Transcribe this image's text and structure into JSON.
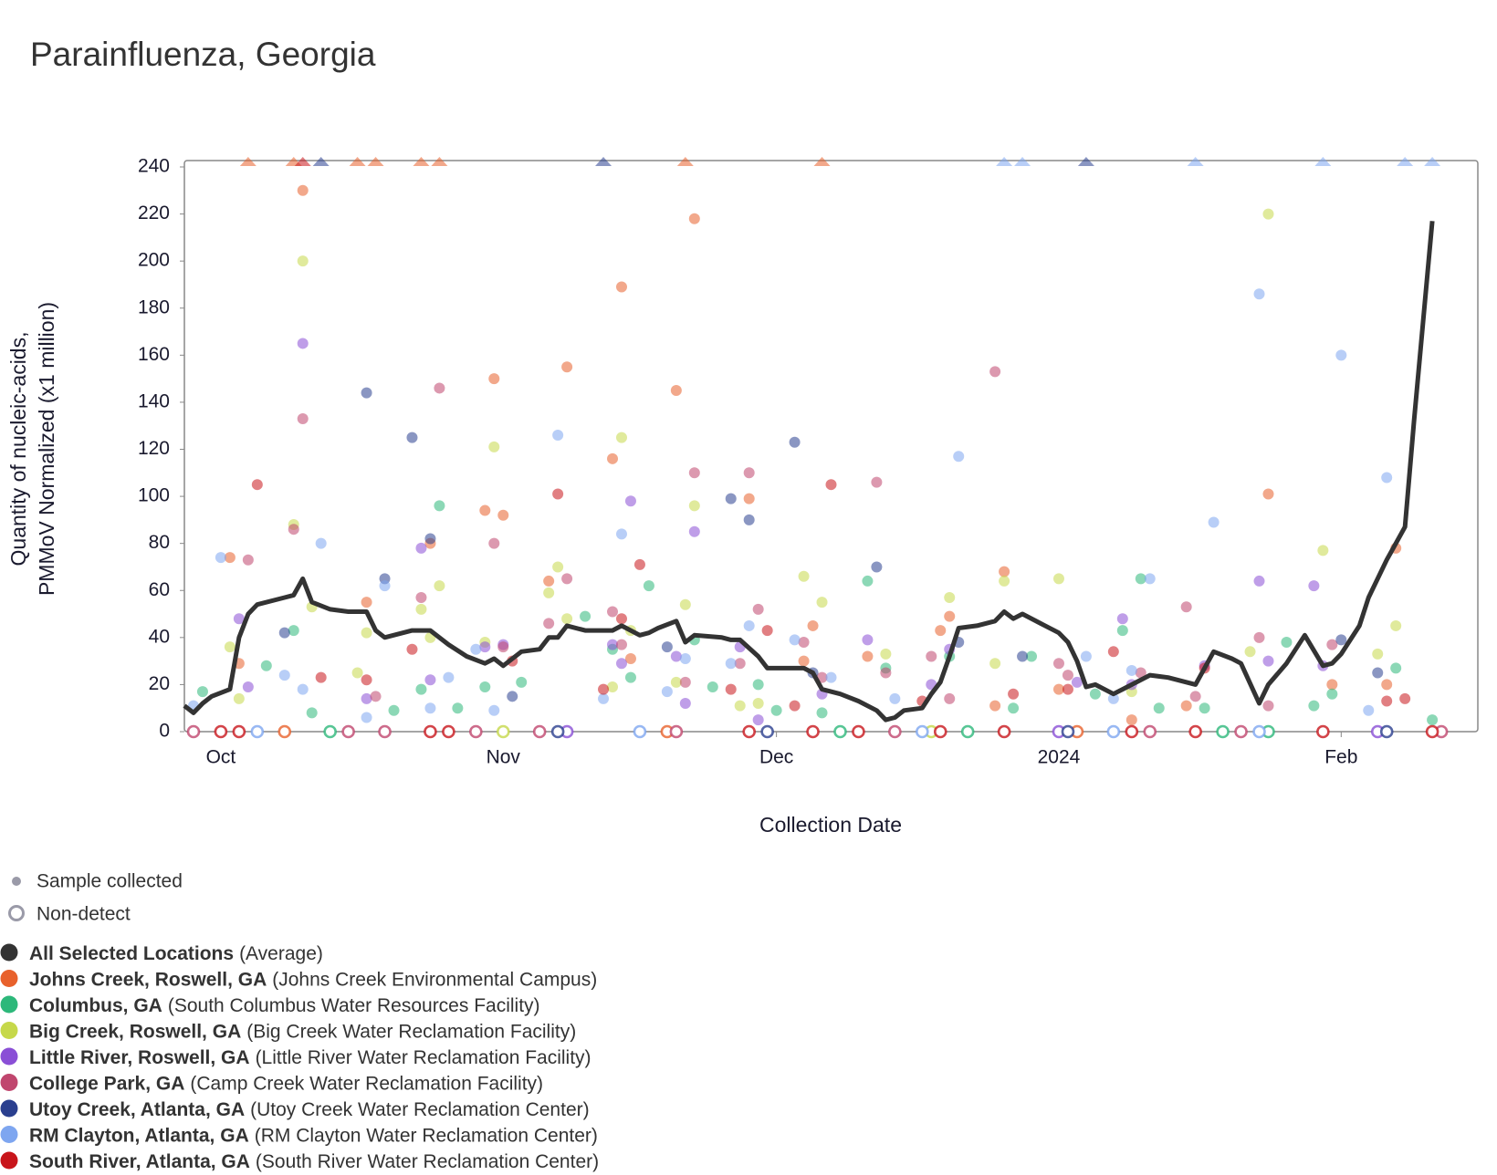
{
  "chart_data": {
    "type": "scatter",
    "title": "Parainfluenza, Georgia",
    "x_label": "Collection Date",
    "y_label": [
      "Quantity of nucleic-acids,",
      "PMMoV Normalized (x1 million)"
    ],
    "xlim": [
      "2023-09-27",
      "2024-02-16"
    ],
    "xticks": [
      {
        "value": "2023-10-01",
        "label": "Oct"
      },
      {
        "value": "2023-11-01",
        "label": "Nov"
      },
      {
        "value": "2023-12-01",
        "label": "Dec"
      },
      {
        "value": "2024-01-01",
        "label": "2024"
      },
      {
        "value": "2024-02-01",
        "label": "Feb"
      }
    ],
    "ylim": [
      0,
      240
    ],
    "yticks": [
      0,
      20,
      40,
      60,
      80,
      100,
      120,
      140,
      160,
      180,
      200,
      220,
      240
    ],
    "marker_legend": [
      "Sample collected",
      "Non-detect"
    ],
    "series": [
      {
        "name": "All Selected Locations",
        "detail": "(Average)",
        "color": "#333333",
        "style": "line",
        "x": [
          "2023-09-27",
          "2023-09-28",
          "2023-09-29",
          "2023-09-30",
          "2023-10-02",
          "2023-10-03",
          "2023-10-04",
          "2023-10-05",
          "2023-10-08",
          "2023-10-09",
          "2023-10-10",
          "2023-10-11",
          "2023-10-13",
          "2023-10-15",
          "2023-10-17",
          "2023-10-18",
          "2023-10-19",
          "2023-10-22",
          "2023-10-24",
          "2023-10-26",
          "2023-10-28",
          "2023-10-30",
          "2023-10-31",
          "2023-11-01",
          "2023-11-03",
          "2023-11-05",
          "2023-11-06",
          "2023-11-07",
          "2023-11-08",
          "2023-11-10",
          "2023-11-13",
          "2023-11-14",
          "2023-11-16",
          "2023-11-17",
          "2023-11-18",
          "2023-11-20",
          "2023-11-21",
          "2023-11-22",
          "2023-11-25",
          "2023-11-26",
          "2023-11-27",
          "2023-11-29",
          "2023-11-30",
          "2023-12-01",
          "2023-12-04",
          "2023-12-05",
          "2023-12-06",
          "2023-12-08",
          "2023-12-10",
          "2023-12-12",
          "2023-12-13",
          "2023-12-14",
          "2023-12-15",
          "2023-12-17",
          "2023-12-18",
          "2023-12-19",
          "2023-12-20",
          "2023-12-21",
          "2023-12-23",
          "2023-12-25",
          "2023-12-26",
          "2023-12-27",
          "2023-12-28",
          "2023-12-30",
          "2024-01-01",
          "2024-01-02",
          "2024-01-03",
          "2024-01-04",
          "2024-01-05",
          "2024-01-07",
          "2024-01-08",
          "2024-01-11",
          "2024-01-13",
          "2024-01-16",
          "2024-01-18",
          "2024-01-20",
          "2024-01-21",
          "2024-01-23",
          "2024-01-24",
          "2024-01-26",
          "2024-01-28",
          "2024-01-30",
          "2024-01-31",
          "2024-02-01",
          "2024-02-03",
          "2024-02-04",
          "2024-02-06",
          "2024-02-08",
          "2024-02-09",
          "2024-02-11"
        ],
        "values": [
          11,
          8,
          12,
          15,
          18,
          40,
          50,
          54,
          57,
          58,
          65,
          55,
          52,
          51,
          51,
          43,
          40,
          43,
          43,
          37,
          32,
          29,
          31,
          28,
          34,
          35,
          40,
          40,
          45,
          43,
          43,
          45,
          41,
          42,
          44,
          47,
          38,
          41,
          40,
          39,
          39,
          32,
          27,
          27,
          27,
          25,
          18,
          16,
          13,
          9,
          5,
          6,
          9,
          10,
          16,
          21,
          32,
          44,
          45,
          47,
          51,
          48,
          50,
          46,
          42,
          38,
          30,
          19,
          20,
          16,
          18,
          24,
          23,
          20,
          34,
          31,
          29,
          12,
          20,
          29,
          41,
          28,
          29,
          33,
          45,
          57,
          73,
          87,
          132,
          217
        ]
      },
      {
        "name": "Johns Creek, Roswell, GA",
        "detail": "(Johns Creek Environmental Campus)",
        "color": "#e8612c",
        "x": [
          "2023-10-02",
          "2023-10-03",
          "2023-10-10",
          "2023-10-17",
          "2023-10-24",
          "2023-10-30",
          "2023-10-31",
          "2023-11-01",
          "2023-11-06",
          "2023-11-08",
          "2023-11-13",
          "2023-11-14",
          "2023-11-15",
          "2023-11-20",
          "2023-11-22",
          "2023-11-28",
          "2023-12-04",
          "2023-12-05",
          "2023-12-11",
          "2023-12-19",
          "2023-12-20",
          "2023-12-25",
          "2023-12-26",
          "2024-01-01",
          "2024-01-09",
          "2024-01-15",
          "2024-01-24",
          "2024-01-31",
          "2024-02-06",
          "2024-02-07"
        ],
        "values": [
          74,
          29,
          230,
          55,
          80,
          94,
          150,
          92,
          64,
          155,
          116,
          189,
          31,
          145,
          218,
          99,
          30,
          45,
          32,
          43,
          49,
          11,
          68,
          18,
          5,
          11,
          101,
          20,
          20,
          78
        ],
        "above_range_x": [
          "2023-10-04",
          "2023-10-09",
          "2023-10-16",
          "2023-10-18",
          "2023-10-23",
          "2023-10-25",
          "2023-11-21",
          "2023-12-06"
        ],
        "nondetect_x": [
          "2023-10-08",
          "2023-11-19",
          "2024-01-03"
        ]
      },
      {
        "name": "Columbus, GA",
        "detail": "(South Columbus Water Resources Facility)",
        "color": "#2db87a",
        "x": [
          "2023-09-29",
          "2023-10-06",
          "2023-10-09",
          "2023-10-11",
          "2023-10-20",
          "2023-10-23",
          "2023-10-25",
          "2023-10-27",
          "2023-10-30",
          "2023-11-03",
          "2023-11-10",
          "2023-11-13",
          "2023-11-15",
          "2023-11-17",
          "2023-11-22",
          "2023-11-24",
          "2023-11-29",
          "2023-12-01",
          "2023-12-06",
          "2023-12-11",
          "2023-12-13",
          "2023-12-20",
          "2023-12-27",
          "2023-12-29",
          "2024-01-05",
          "2024-01-08",
          "2024-01-10",
          "2024-01-12",
          "2024-01-17",
          "2024-01-26",
          "2024-01-29",
          "2024-01-31",
          "2024-02-07",
          "2024-02-11"
        ],
        "values": [
          17,
          28,
          43,
          8,
          9,
          18,
          96,
          10,
          19,
          21,
          49,
          35,
          23,
          62,
          39,
          19,
          20,
          9,
          8,
          64,
          27,
          32,
          10,
          32,
          16,
          43,
          65,
          10,
          10,
          38,
          11,
          16,
          27,
          5
        ],
        "nondetect_x": [
          "2023-10-13",
          "2023-12-08",
          "2023-12-22",
          "2024-01-19",
          "2024-01-24"
        ]
      },
      {
        "name": "Big Creek, Roswell, GA",
        "detail": "(Big Creek Water Reclamation Facility)",
        "color": "#c6d84a",
        "x": [
          "2023-10-02",
          "2023-10-03",
          "2023-10-09",
          "2023-10-10",
          "2023-10-11",
          "2023-10-16",
          "2023-10-17",
          "2023-10-23",
          "2023-10-24",
          "2023-10-25",
          "2023-10-30",
          "2023-10-31",
          "2023-11-06",
          "2023-11-07",
          "2023-11-08",
          "2023-11-13",
          "2023-11-14",
          "2023-11-15",
          "2023-11-20",
          "2023-11-21",
          "2023-11-22",
          "2023-11-27",
          "2023-11-29",
          "2023-12-04",
          "2023-12-06",
          "2023-12-13",
          "2023-12-20",
          "2023-12-25",
          "2023-12-26",
          "2024-01-01",
          "2024-01-09",
          "2024-01-22",
          "2024-01-24",
          "2024-01-30",
          "2024-02-05",
          "2024-02-07"
        ],
        "values": [
          36,
          14,
          88,
          200,
          53,
          25,
          42,
          52,
          40,
          62,
          38,
          121,
          59,
          70,
          48,
          19,
          125,
          43,
          21,
          54,
          96,
          11,
          12,
          66,
          55,
          33,
          57,
          29,
          64,
          65,
          17,
          34,
          220,
          77,
          33,
          45
        ],
        "nondetect_x": [
          "2023-11-01",
          "2023-12-18"
        ]
      },
      {
        "name": "Little River, Roswell, GA",
        "detail": "(Little River Water Reclamation Facility)",
        "color": "#8a4fd6",
        "x": [
          "2023-10-03",
          "2023-10-04",
          "2023-10-10",
          "2023-10-17",
          "2023-10-23",
          "2023-10-24",
          "2023-10-30",
          "2023-11-01",
          "2023-11-13",
          "2023-11-14",
          "2023-11-15",
          "2023-11-20",
          "2023-11-21",
          "2023-11-22",
          "2023-11-27",
          "2023-11-29",
          "2023-12-06",
          "2023-12-11",
          "2023-12-18",
          "2023-12-20",
          "2024-01-03",
          "2024-01-08",
          "2024-01-09",
          "2024-01-17",
          "2024-01-23",
          "2024-01-24",
          "2024-01-29",
          "2024-01-30"
        ],
        "values": [
          48,
          19,
          165,
          14,
          78,
          22,
          36,
          37,
          37,
          29,
          98,
          32,
          12,
          85,
          36,
          5,
          16,
          39,
          20,
          35,
          21,
          48,
          20,
          28,
          64,
          30,
          62,
          28
        ],
        "nondetect_x": [
          "2023-11-08",
          "2024-01-01",
          "2024-02-05"
        ]
      },
      {
        "name": "College Park, GA",
        "detail": "(Camp Creek Water Reclamation Facility)",
        "color": "#c0466e",
        "x": [
          "2023-10-04",
          "2023-10-09",
          "2023-10-10",
          "2023-10-18",
          "2023-10-23",
          "2023-10-25",
          "2023-10-31",
          "2023-11-01",
          "2023-11-06",
          "2023-11-08",
          "2023-11-13",
          "2023-11-14",
          "2023-11-21",
          "2023-11-22",
          "2023-11-27",
          "2023-11-28",
          "2023-11-29",
          "2023-12-04",
          "2023-12-06",
          "2023-12-12",
          "2023-12-13",
          "2023-12-18",
          "2023-12-20",
          "2023-12-25",
          "2024-01-01",
          "2024-01-02",
          "2024-01-10",
          "2024-01-15",
          "2024-01-16",
          "2024-01-23",
          "2024-01-24",
          "2024-01-31"
        ],
        "values": [
          73,
          86,
          133,
          15,
          57,
          146,
          80,
          36,
          46,
          65,
          51,
          37,
          21,
          110,
          29,
          110,
          52,
          38,
          23,
          106,
          25,
          32,
          14,
          153,
          29,
          24,
          25,
          53,
          15,
          40,
          11,
          37
        ],
        "nondetect_x": [
          "2023-09-28",
          "2023-10-15",
          "2023-10-19",
          "2023-10-29",
          "2023-11-05",
          "2023-11-20",
          "2023-12-14",
          "2024-01-11",
          "2024-01-21",
          "2024-02-12"
        ]
      },
      {
        "name": "Utoy Creek, Atlanta, GA",
        "detail": "(Utoy Creek Water Reclamation Center)",
        "color": "#2a3f8f",
        "x": [
          "2023-10-08",
          "2023-10-17",
          "2023-10-19",
          "2023-10-22",
          "2023-10-24",
          "2023-11-02",
          "2023-11-19",
          "2023-11-26",
          "2023-11-28",
          "2023-12-03",
          "2023-12-05",
          "2023-12-12",
          "2023-12-21",
          "2023-12-28",
          "2024-02-01",
          "2024-02-05"
        ],
        "values": [
          42,
          144,
          65,
          125,
          82,
          15,
          36,
          99,
          90,
          123,
          25,
          70,
          38,
          32,
          39,
          25
        ],
        "above_range_x": [
          "2023-10-12",
          "2023-11-12",
          "2024-01-04"
        ],
        "nondetect_x": [
          "2023-11-07",
          "2023-11-30",
          "2024-01-02",
          "2024-02-06"
        ]
      },
      {
        "name": "RM Clayton, Atlanta, GA",
        "detail": "(RM Clayton Water Reclamation Center)",
        "color": "#7ea6f0",
        "x": [
          "2023-09-28",
          "2023-10-01",
          "2023-10-08",
          "2023-10-10",
          "2023-10-12",
          "2023-10-17",
          "2023-10-19",
          "2023-10-24",
          "2023-10-26",
          "2023-10-29",
          "2023-10-31",
          "2023-11-07",
          "2023-11-12",
          "2023-11-14",
          "2023-11-19",
          "2023-11-21",
          "2023-11-26",
          "2023-11-28",
          "2023-12-03",
          "2023-12-07",
          "2023-12-14",
          "2023-12-21",
          "2024-01-04",
          "2024-01-07",
          "2024-01-09",
          "2024-01-11",
          "2024-01-18",
          "2024-01-23",
          "2024-02-01",
          "2024-02-04",
          "2024-02-06"
        ],
        "values": [
          11,
          74,
          24,
          18,
          80,
          6,
          62,
          10,
          23,
          35,
          9,
          126,
          14,
          84,
          17,
          31,
          29,
          45,
          39,
          23,
          14,
          117,
          32,
          14,
          26,
          65,
          89,
          186,
          160,
          9,
          108
        ],
        "above_range_x": [
          "2023-12-26",
          "2023-12-28",
          "2024-01-16",
          "2024-01-30",
          "2024-02-08",
          "2024-02-11"
        ],
        "nondetect_x": [
          "2023-10-05",
          "2023-11-16",
          "2023-12-17",
          "2024-01-07",
          "2024-01-23"
        ]
      },
      {
        "name": "South River, Atlanta, GA",
        "detail": "(South River Water Reclamation Center)",
        "color": "#c8151b",
        "x": [
          "2023-10-05",
          "2023-10-12",
          "2023-10-17",
          "2023-10-22",
          "2023-11-02",
          "2023-11-07",
          "2023-11-12",
          "2023-11-14",
          "2023-11-16",
          "2023-11-26",
          "2023-11-30",
          "2023-12-03",
          "2023-12-07",
          "2023-12-17",
          "2023-12-27",
          "2024-01-02",
          "2024-01-07",
          "2024-01-17",
          "2024-02-06",
          "2024-02-08"
        ],
        "values": [
          105,
          23,
          22,
          35,
          30,
          101,
          18,
          48,
          71,
          18,
          43,
          11,
          105,
          13,
          16,
          18,
          34,
          27,
          13,
          14
        ],
        "above_range_x": [
          "2023-10-10"
        ],
        "nondetect_x": [
          "2023-10-01",
          "2023-10-03",
          "2023-10-24",
          "2023-10-26",
          "2023-11-28",
          "2023-12-05",
          "2023-12-10",
          "2023-12-19",
          "2023-12-26",
          "2024-01-09",
          "2024-01-16",
          "2024-01-30",
          "2024-02-11"
        ]
      }
    ]
  }
}
